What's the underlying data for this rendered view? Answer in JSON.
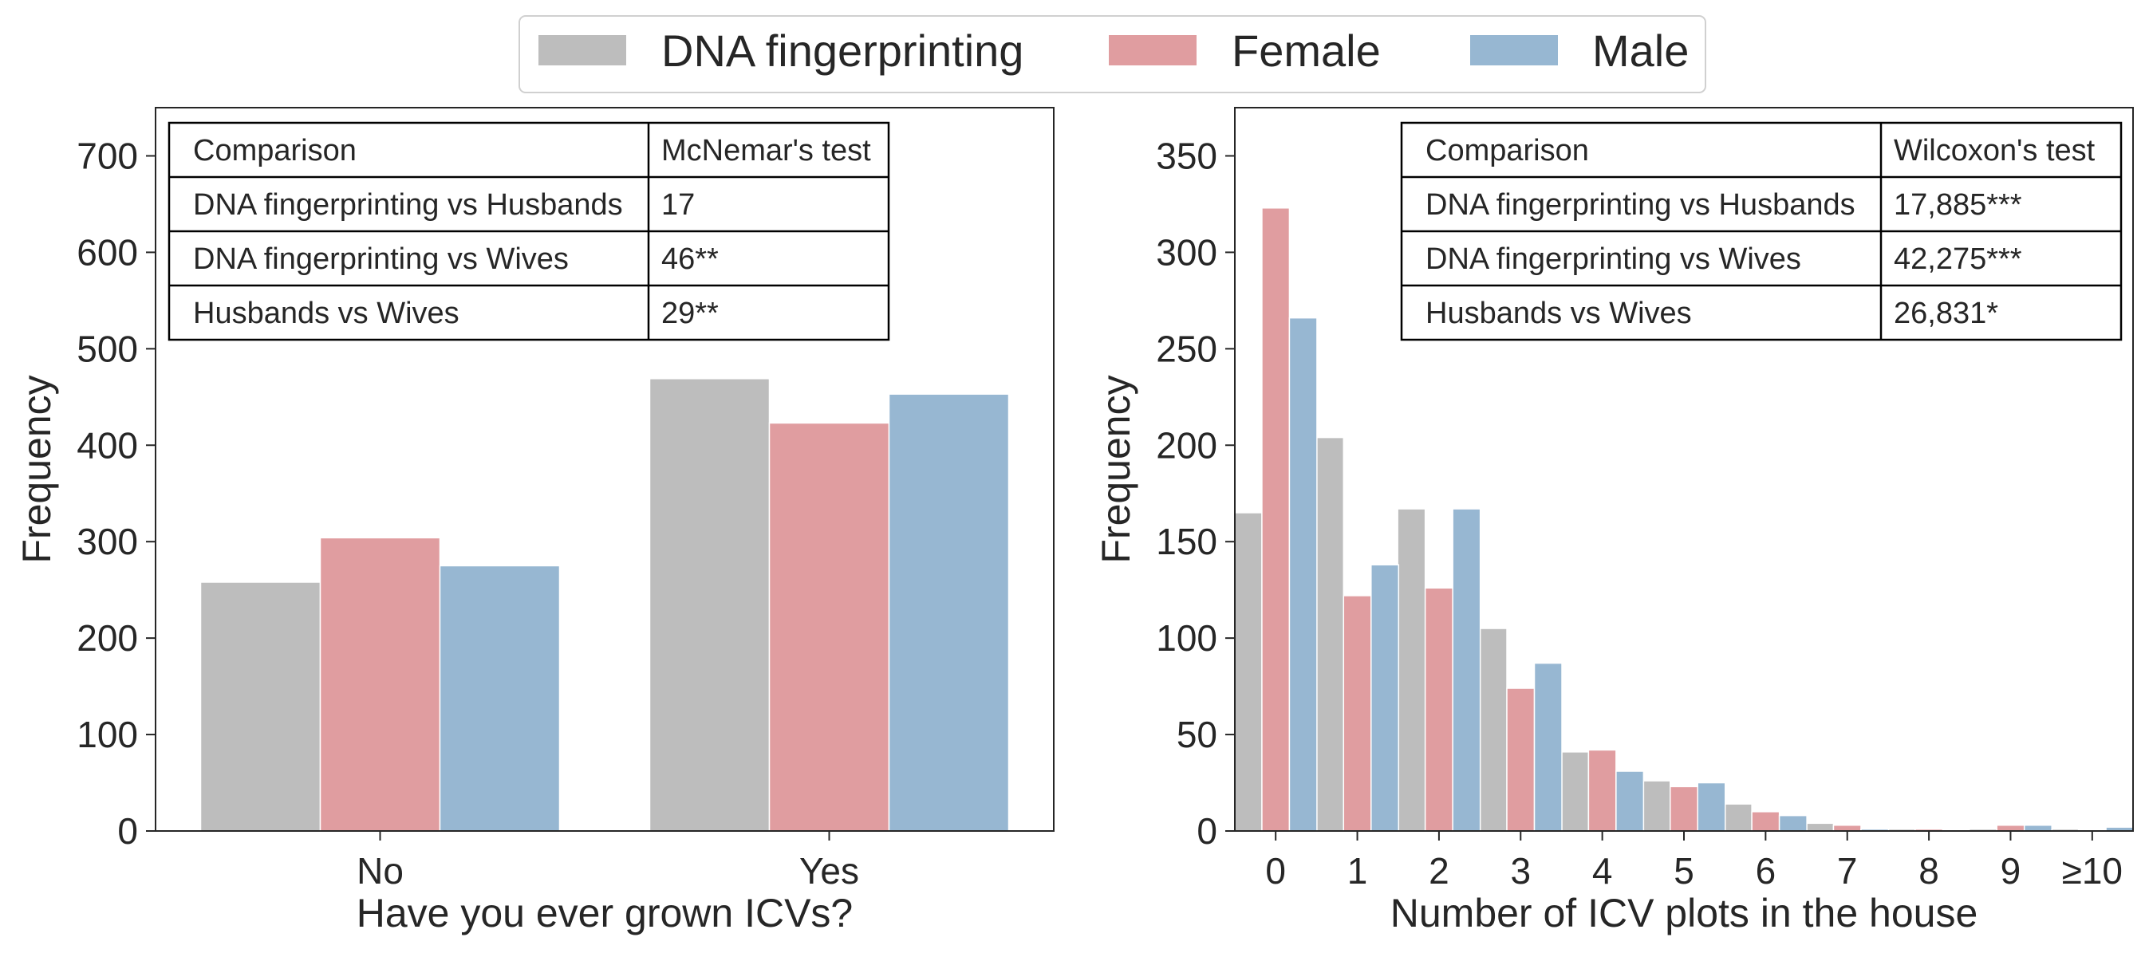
{
  "legend": {
    "items": [
      {
        "name": "DNA fingerprinting",
        "color": "#bdbdbd"
      },
      {
        "name": "Female",
        "color": "#e09da0"
      },
      {
        "name": "Male",
        "color": "#97b7d2"
      }
    ]
  },
  "chart_data": [
    {
      "type": "bar",
      "title": "",
      "xlabel": "Have you ever grown ICVs?",
      "ylabel": "Frequency",
      "categories": [
        "No",
        "Yes"
      ],
      "ylim": [
        0,
        750
      ],
      "yticks": [
        0,
        100,
        200,
        300,
        400,
        500,
        600,
        700
      ],
      "series": [
        {
          "name": "DNA fingerprinting",
          "values": [
            258,
            469
          ]
        },
        {
          "name": "Female",
          "values": [
            304,
            423
          ]
        },
        {
          "name": "Male",
          "values": [
            275,
            453
          ]
        }
      ],
      "table": {
        "headers": [
          "Comparison",
          "McNemar's test"
        ],
        "rows": [
          [
            "DNA fingerprinting vs Husbands",
            "17"
          ],
          [
            "DNA fingerprinting vs Wives",
            "46**"
          ],
          [
            "Husbands vs Wives",
            "29**"
          ]
        ]
      }
    },
    {
      "type": "bar",
      "title": "",
      "xlabel": "Number of ICV plots in the house",
      "ylabel": "Frequency",
      "categories": [
        "0",
        "1",
        "2",
        "3",
        "4",
        "5",
        "6",
        "7",
        "8",
        "9",
        "≥10"
      ],
      "ylim": [
        0,
        375
      ],
      "yticks": [
        0,
        50,
        100,
        150,
        200,
        250,
        300,
        350
      ],
      "series": [
        {
          "name": "DNA fingerprinting",
          "values": [
            165,
            204,
            167,
            105,
            41,
            26,
            14,
            4,
            1,
            1,
            1
          ]
        },
        {
          "name": "Female",
          "values": [
            323,
            122,
            126,
            74,
            42,
            23,
            10,
            3,
            1,
            3,
            0
          ]
        },
        {
          "name": "Male",
          "values": [
            266,
            138,
            167,
            87,
            31,
            25,
            8,
            1,
            0,
            3,
            2
          ]
        }
      ],
      "table": {
        "headers": [
          "Comparison",
          "Wilcoxon's test"
        ],
        "rows": [
          [
            "DNA fingerprinting vs Husbands",
            "17,885***"
          ],
          [
            "DNA fingerprinting vs Wives",
            "42,275***"
          ],
          [
            "Husbands vs Wives",
            "26,831*"
          ]
        ]
      }
    }
  ]
}
